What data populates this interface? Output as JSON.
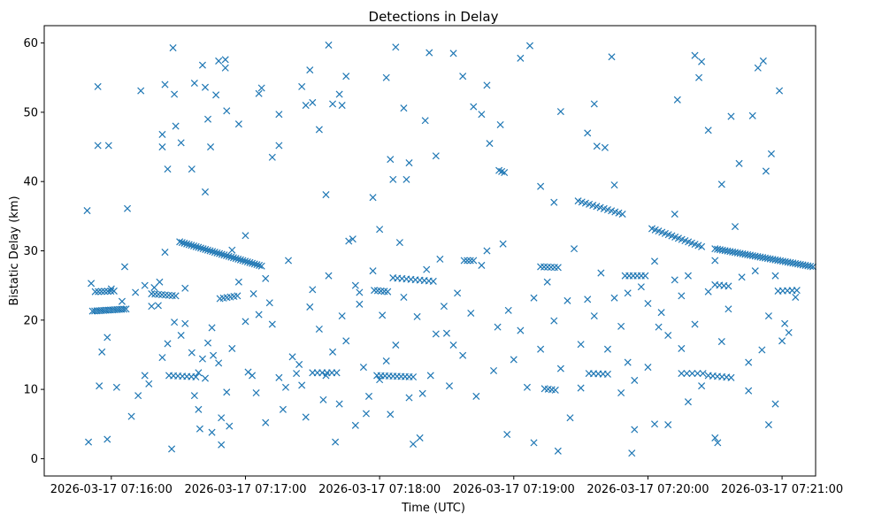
{
  "chart_data": {
    "type": "scatter",
    "title": "Detections in Delay",
    "xlabel": "Time (UTC)",
    "ylabel": "Bistatic Delay (km)",
    "marker": "x",
    "marker_color": "#1f77b4",
    "x_unit": "minutes after 07:15:00",
    "xlim": [
      0.5,
      6.25
    ],
    "ylim": [
      -2.5,
      62.5
    ],
    "x_ticks": [
      {
        "value": 1,
        "label": "2026-03-17 07:16:00"
      },
      {
        "value": 2,
        "label": "2026-03-17 07:17:00"
      },
      {
        "value": 3,
        "label": "2026-03-17 07:18:00"
      },
      {
        "value": 4,
        "label": "2026-03-17 07:19:00"
      },
      {
        "value": 5,
        "label": "2026-03-17 07:20:00"
      },
      {
        "value": 6,
        "label": "2026-03-17 07:21:00"
      }
    ],
    "y_ticks": [
      {
        "value": 0,
        "label": "0"
      },
      {
        "value": 10,
        "label": "10"
      },
      {
        "value": 20,
        "label": "20"
      },
      {
        "value": 30,
        "label": "30"
      },
      {
        "value": 40,
        "label": "40"
      },
      {
        "value": 50,
        "label": "50"
      },
      {
        "value": 60,
        "label": "60"
      }
    ],
    "tracks": [
      {
        "x_start": 0.86,
        "x_end": 1.11,
        "y_start": 21.3,
        "y_end": 21.6,
        "count": 16
      },
      {
        "x_start": 0.88,
        "x_end": 1.02,
        "y_start": 24.1,
        "y_end": 24.2,
        "count": 7
      },
      {
        "x_start": 1.51,
        "x_end": 2.12,
        "y_start": 31.3,
        "y_end": 27.8,
        "count": 36
      },
      {
        "x_start": 1.3,
        "x_end": 1.48,
        "y_start": 23.8,
        "y_end": 23.5,
        "count": 8
      },
      {
        "x_start": 1.43,
        "x_end": 1.63,
        "y_start": 12.0,
        "y_end": 11.8,
        "count": 7
      },
      {
        "x_start": 1.81,
        "x_end": 1.94,
        "y_start": 23.1,
        "y_end": 23.5,
        "count": 6
      },
      {
        "x_start": 2.5,
        "x_end": 2.68,
        "y_start": 12.4,
        "y_end": 12.4,
        "count": 6
      },
      {
        "x_start": 2.98,
        "x_end": 3.25,
        "y_start": 12.0,
        "y_end": 11.8,
        "count": 10
      },
      {
        "x_start": 2.96,
        "x_end": 3.06,
        "y_start": 24.3,
        "y_end": 24.1,
        "count": 5
      },
      {
        "x_start": 3.1,
        "x_end": 3.4,
        "y_start": 26.1,
        "y_end": 25.6,
        "count": 10
      },
      {
        "x_start": 3.63,
        "x_end": 3.7,
        "y_start": 28.6,
        "y_end": 28.6,
        "count": 4
      },
      {
        "x_start": 3.89,
        "x_end": 3.93,
        "y_start": 41.6,
        "y_end": 41.3,
        "count": 3
      },
      {
        "x_start": 4.2,
        "x_end": 4.33,
        "y_start": 27.7,
        "y_end": 27.6,
        "count": 6
      },
      {
        "x_start": 4.23,
        "x_end": 4.31,
        "y_start": 10.1,
        "y_end": 9.9,
        "count": 4
      },
      {
        "x_start": 4.48,
        "x_end": 4.81,
        "y_start": 37.2,
        "y_end": 35.3,
        "count": 13
      },
      {
        "x_start": 4.56,
        "x_end": 4.7,
        "y_start": 12.3,
        "y_end": 12.2,
        "count": 5
      },
      {
        "x_start": 4.83,
        "x_end": 4.98,
        "y_start": 26.4,
        "y_end": 26.4,
        "count": 6
      },
      {
        "x_start": 5.03,
        "x_end": 5.4,
        "y_start": 33.2,
        "y_end": 30.6,
        "count": 16
      },
      {
        "x_start": 5.25,
        "x_end": 5.41,
        "y_start": 12.3,
        "y_end": 12.3,
        "count": 5
      },
      {
        "x_start": 5.45,
        "x_end": 5.62,
        "y_start": 12.0,
        "y_end": 11.7,
        "count": 6
      },
      {
        "x_start": 5.5,
        "x_end": 6.23,
        "y_start": 30.3,
        "y_end": 27.7,
        "count": 40
      },
      {
        "x_start": 5.5,
        "x_end": 5.6,
        "y_start": 25.1,
        "y_end": 24.9,
        "count": 4
      },
      {
        "x_start": 5.97,
        "x_end": 6.11,
        "y_start": 24.2,
        "y_end": 24.3,
        "count": 5
      }
    ],
    "scatter": [
      [
        0.82,
        35.8
      ],
      [
        0.83,
        2.4
      ],
      [
        0.9,
        53.7
      ],
      [
        0.9,
        45.2
      ],
      [
        0.93,
        15.4
      ],
      [
        0.91,
        10.5
      ],
      [
        0.97,
        2.8
      ],
      [
        0.97,
        17.5
      ],
      [
        0.98,
        45.2
      ],
      [
        1.04,
        10.3
      ],
      [
        1.1,
        27.7
      ],
      [
        1.12,
        36.1
      ],
      [
        1.15,
        6.1
      ],
      [
        1.2,
        9.1
      ],
      [
        1.25,
        12.0
      ],
      [
        1.22,
        53.1
      ],
      [
        1.28,
        10.8
      ],
      [
        1.32,
        24.7
      ],
      [
        1.35,
        22.1
      ],
      [
        1.38,
        46.8
      ],
      [
        1.38,
        45.0
      ],
      [
        1.4,
        54.0
      ],
      [
        1.42,
        41.8
      ],
      [
        1.45,
        1.4
      ],
      [
        1.46,
        59.3
      ],
      [
        1.47,
        52.6
      ],
      [
        1.48,
        48.0
      ],
      [
        1.52,
        45.6
      ],
      [
        1.55,
        19.5
      ],
      [
        1.6,
        41.8
      ],
      [
        1.62,
        54.2
      ],
      [
        1.62,
        9.1
      ],
      [
        1.65,
        12.4
      ],
      [
        1.68,
        56.8
      ],
      [
        1.7,
        38.5
      ],
      [
        1.7,
        53.6
      ],
      [
        1.72,
        49.0
      ],
      [
        1.74,
        45.0
      ],
      [
        1.75,
        18.9
      ],
      [
        1.78,
        52.5
      ],
      [
        1.8,
        57.4
      ],
      [
        1.82,
        2.0
      ],
      [
        1.85,
        56.4
      ],
      [
        1.85,
        57.6
      ],
      [
        1.86,
        50.2
      ],
      [
        1.88,
        4.7
      ],
      [
        1.9,
        30.1
      ],
      [
        1.95,
        48.3
      ],
      [
        2.0,
        19.8
      ],
      [
        2.05,
        12.0
      ],
      [
        2.1,
        52.7
      ],
      [
        2.12,
        53.5
      ],
      [
        2.15,
        5.2
      ],
      [
        2.2,
        43.5
      ],
      [
        2.25,
        45.2
      ],
      [
        2.25,
        49.7
      ],
      [
        2.3,
        10.3
      ],
      [
        2.38,
        12.3
      ],
      [
        2.42,
        53.7
      ],
      [
        2.45,
        51.0
      ],
      [
        2.48,
        56.1
      ],
      [
        2.5,
        51.4
      ],
      [
        2.55,
        47.5
      ],
      [
        2.6,
        38.1
      ],
      [
        2.62,
        59.7
      ],
      [
        2.65,
        51.2
      ],
      [
        2.67,
        2.4
      ],
      [
        2.7,
        52.6
      ],
      [
        2.72,
        51.0
      ],
      [
        2.75,
        55.2
      ],
      [
        2.77,
        31.4
      ],
      [
        2.82,
        4.8
      ],
      [
        2.85,
        24.0
      ],
      [
        2.9,
        6.5
      ],
      [
        2.95,
        37.7
      ],
      [
        3.0,
        33.1
      ],
      [
        3.05,
        55.0
      ],
      [
        3.08,
        43.2
      ],
      [
        3.1,
        40.3
      ],
      [
        3.12,
        59.4
      ],
      [
        3.18,
        50.6
      ],
      [
        3.2,
        40.3
      ],
      [
        3.22,
        42.7
      ],
      [
        3.25,
        2.1
      ],
      [
        3.3,
        3.0
      ],
      [
        3.34,
        48.8
      ],
      [
        3.37,
        58.6
      ],
      [
        3.42,
        43.7
      ],
      [
        3.5,
        18.1
      ],
      [
        3.55,
        58.5
      ],
      [
        3.62,
        55.2
      ],
      [
        3.7,
        50.8
      ],
      [
        3.76,
        49.7
      ],
      [
        3.8,
        53.9
      ],
      [
        3.82,
        45.5
      ],
      [
        3.9,
        48.2
      ],
      [
        3.95,
        3.5
      ],
      [
        4.05,
        57.8
      ],
      [
        4.12,
        59.6
      ],
      [
        4.15,
        2.3
      ],
      [
        4.2,
        39.3
      ],
      [
        4.3,
        37.0
      ],
      [
        4.33,
        1.1
      ],
      [
        4.35,
        50.1
      ],
      [
        4.42,
        5.9
      ],
      [
        4.5,
        10.2
      ],
      [
        4.55,
        47.0
      ],
      [
        4.6,
        51.2
      ],
      [
        4.62,
        45.1
      ],
      [
        4.68,
        44.9
      ],
      [
        4.73,
        58.0
      ],
      [
        4.75,
        39.5
      ],
      [
        4.8,
        9.5
      ],
      [
        4.85,
        13.9
      ],
      [
        4.88,
        0.8
      ],
      [
        4.9,
        4.2
      ],
      [
        5.0,
        13.2
      ],
      [
        5.05,
        5.0
      ],
      [
        5.08,
        19.0
      ],
      [
        5.15,
        4.9
      ],
      [
        5.2,
        35.3
      ],
      [
        5.22,
        51.8
      ],
      [
        5.25,
        15.9
      ],
      [
        5.3,
        8.2
      ],
      [
        5.35,
        58.2
      ],
      [
        5.38,
        55.0
      ],
      [
        5.4,
        57.3
      ],
      [
        5.45,
        47.4
      ],
      [
        5.5,
        3.0
      ],
      [
        5.52,
        2.3
      ],
      [
        5.55,
        39.6
      ],
      [
        5.62,
        49.4
      ],
      [
        5.68,
        42.6
      ],
      [
        5.75,
        9.8
      ],
      [
        5.78,
        49.5
      ],
      [
        5.82,
        56.4
      ],
      [
        5.86,
        57.4
      ],
      [
        5.88,
        41.5
      ],
      [
        5.9,
        4.9
      ],
      [
        5.92,
        44.0
      ],
      [
        5.95,
        7.9
      ],
      [
        5.98,
        53.1
      ],
      [
        6.0,
        17.0
      ],
      [
        6.02,
        19.5
      ],
      [
        6.05,
        18.2
      ],
      [
        6.1,
        23.3
      ],
      [
        0.85,
        25.3
      ],
      [
        1.0,
        24.5
      ],
      [
        1.08,
        22.7
      ],
      [
        1.18,
        24.0
      ],
      [
        1.25,
        25.0
      ],
      [
        1.3,
        22.0
      ],
      [
        1.36,
        25.5
      ],
      [
        1.38,
        14.6
      ],
      [
        1.4,
        29.8
      ],
      [
        1.42,
        16.6
      ],
      [
        1.47,
        19.7
      ],
      [
        1.52,
        17.8
      ],
      [
        1.55,
        24.6
      ],
      [
        1.6,
        15.3
      ],
      [
        1.65,
        7.1
      ],
      [
        1.66,
        4.3
      ],
      [
        1.68,
        14.4
      ],
      [
        1.7,
        11.6
      ],
      [
        1.72,
        16.7
      ],
      [
        1.75,
        3.8
      ],
      [
        1.76,
        14.9
      ],
      [
        1.8,
        13.8
      ],
      [
        1.82,
        5.9
      ],
      [
        1.86,
        9.6
      ],
      [
        1.9,
        15.9
      ],
      [
        1.95,
        25.5
      ],
      [
        2.0,
        32.2
      ],
      [
        2.02,
        12.5
      ],
      [
        2.06,
        23.8
      ],
      [
        2.08,
        9.5
      ],
      [
        2.1,
        20.8
      ],
      [
        2.15,
        26.0
      ],
      [
        2.18,
        22.5
      ],
      [
        2.2,
        19.4
      ],
      [
        2.25,
        11.7
      ],
      [
        2.28,
        7.1
      ],
      [
        2.32,
        28.6
      ],
      [
        2.35,
        14.7
      ],
      [
        2.4,
        13.6
      ],
      [
        2.42,
        10.6
      ],
      [
        2.45,
        6.0
      ],
      [
        2.48,
        21.9
      ],
      [
        2.5,
        24.4
      ],
      [
        2.55,
        18.7
      ],
      [
        2.58,
        8.5
      ],
      [
        2.6,
        12.0
      ],
      [
        2.62,
        26.4
      ],
      [
        2.65,
        15.4
      ],
      [
        2.7,
        7.9
      ],
      [
        2.72,
        20.6
      ],
      [
        2.75,
        17.0
      ],
      [
        2.8,
        31.7
      ],
      [
        2.82,
        25.0
      ],
      [
        2.85,
        22.3
      ],
      [
        2.88,
        13.2
      ],
      [
        2.92,
        9.0
      ],
      [
        2.95,
        27.1
      ],
      [
        3.0,
        11.4
      ],
      [
        3.02,
        20.7
      ],
      [
        3.05,
        14.1
      ],
      [
        3.08,
        6.4
      ],
      [
        3.12,
        16.4
      ],
      [
        3.15,
        31.2
      ],
      [
        3.18,
        23.3
      ],
      [
        3.22,
        8.8
      ],
      [
        3.28,
        20.5
      ],
      [
        3.32,
        9.4
      ],
      [
        3.35,
        27.3
      ],
      [
        3.38,
        12.0
      ],
      [
        3.42,
        18.0
      ],
      [
        3.45,
        28.8
      ],
      [
        3.48,
        22.0
      ],
      [
        3.52,
        10.5
      ],
      [
        3.55,
        16.4
      ],
      [
        3.58,
        23.9
      ],
      [
        3.62,
        14.9
      ],
      [
        3.68,
        21.0
      ],
      [
        3.72,
        9.0
      ],
      [
        3.76,
        27.9
      ],
      [
        3.8,
        30.0
      ],
      [
        3.85,
        12.7
      ],
      [
        3.88,
        19.0
      ],
      [
        3.92,
        31.0
      ],
      [
        3.96,
        21.4
      ],
      [
        4.0,
        14.3
      ],
      [
        4.05,
        18.5
      ],
      [
        4.1,
        10.3
      ],
      [
        4.15,
        23.2
      ],
      [
        4.2,
        15.8
      ],
      [
        4.25,
        25.5
      ],
      [
        4.3,
        19.9
      ],
      [
        4.35,
        13.0
      ],
      [
        4.4,
        22.8
      ],
      [
        4.45,
        30.3
      ],
      [
        4.5,
        16.5
      ],
      [
        4.55,
        23.0
      ],
      [
        4.6,
        20.6
      ],
      [
        4.65,
        26.8
      ],
      [
        4.7,
        15.8
      ],
      [
        4.75,
        23.2
      ],
      [
        4.8,
        19.1
      ],
      [
        4.85,
        23.9
      ],
      [
        4.9,
        11.3
      ],
      [
        4.95,
        24.8
      ],
      [
        5.0,
        22.4
      ],
      [
        5.05,
        28.5
      ],
      [
        5.1,
        21.1
      ],
      [
        5.15,
        17.8
      ],
      [
        5.2,
        25.8
      ],
      [
        5.25,
        23.5
      ],
      [
        5.3,
        26.4
      ],
      [
        5.35,
        19.4
      ],
      [
        5.4,
        10.5
      ],
      [
        5.45,
        24.1
      ],
      [
        5.5,
        28.6
      ],
      [
        5.55,
        16.9
      ],
      [
        5.6,
        21.6
      ],
      [
        5.65,
        33.5
      ],
      [
        5.7,
        26.2
      ],
      [
        5.75,
        13.9
      ],
      [
        5.8,
        27.1
      ],
      [
        5.85,
        15.7
      ],
      [
        5.9,
        20.6
      ],
      [
        5.95,
        26.4
      ]
    ]
  }
}
